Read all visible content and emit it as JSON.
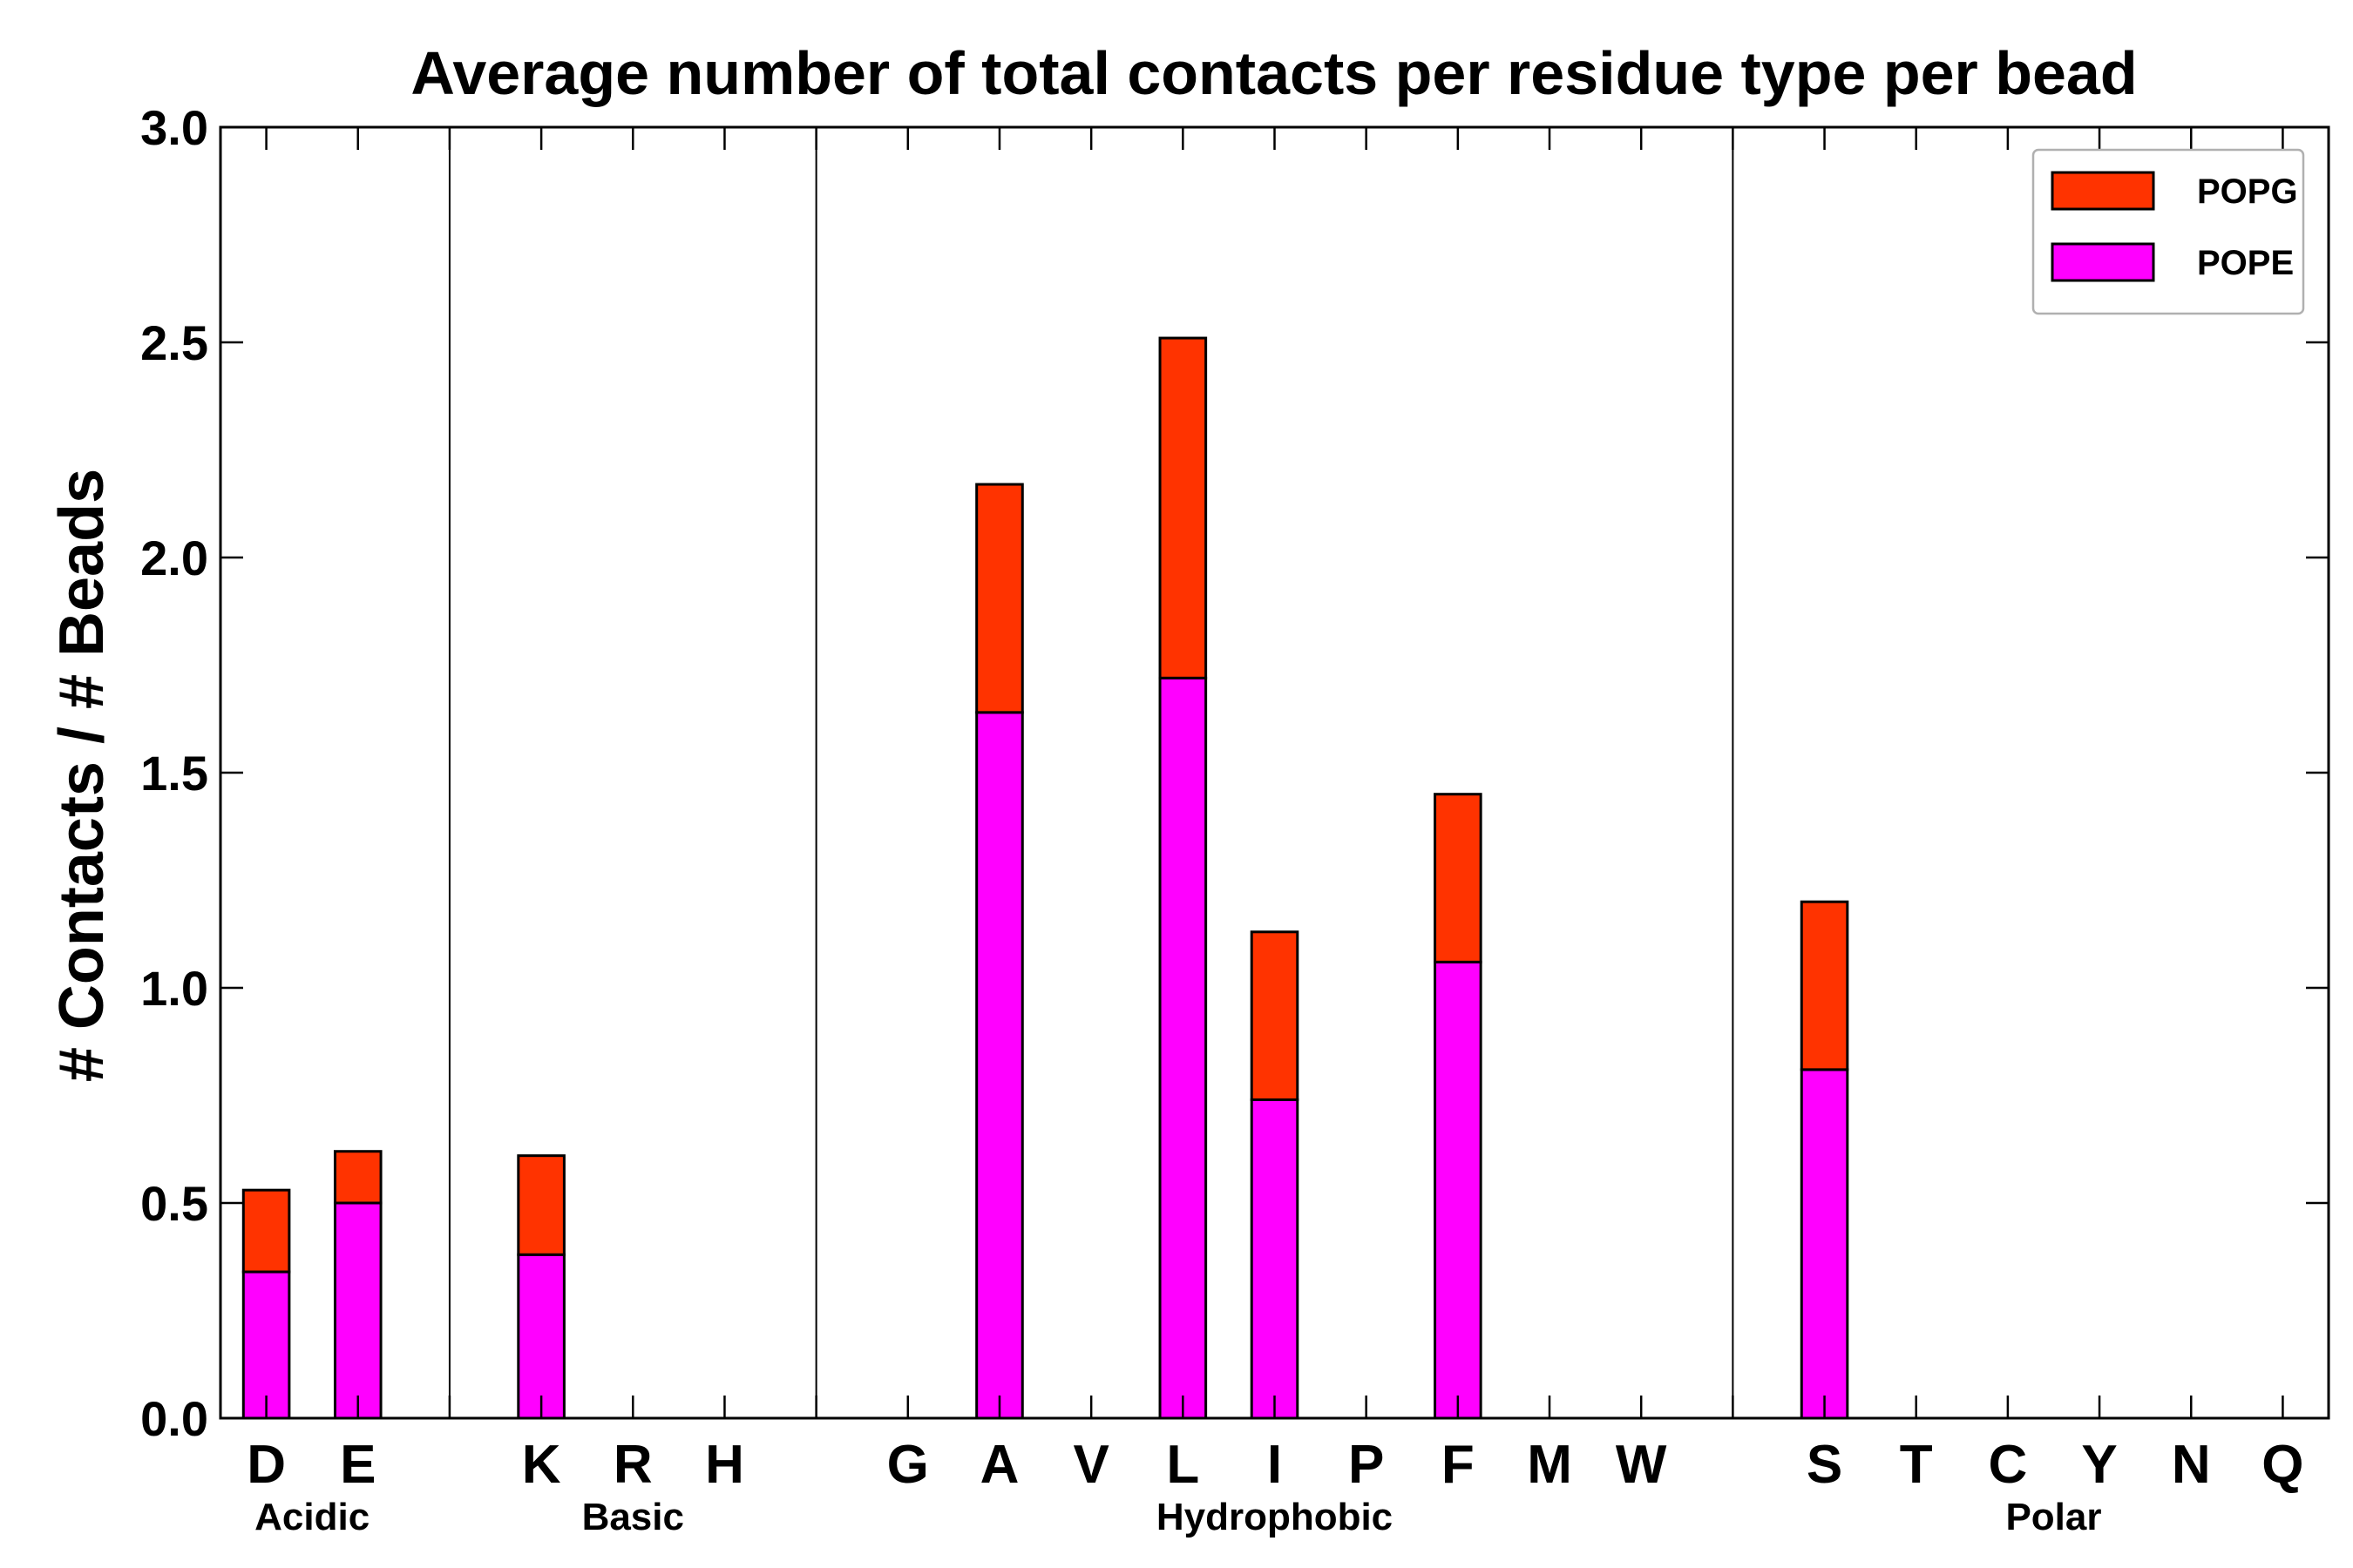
{
  "chart_data": {
    "type": "bar",
    "stacked": true,
    "title": "Average number of total contacts per residue type per bead",
    "xlabel": "",
    "ylabel": "# Contacts / # Beads",
    "ylim": [
      0,
      3.0
    ],
    "yticks": [
      "0.0",
      "0.5",
      "1.0",
      "1.5",
      "2.0",
      "2.5",
      "3.0"
    ],
    "categories": [
      "D",
      "E",
      "",
      "K",
      "R",
      "H",
      "",
      "G",
      "A",
      "V",
      "L",
      "I",
      "P",
      "F",
      "M",
      "W",
      "",
      "S",
      "T",
      "C",
      "Y",
      "N",
      "Q"
    ],
    "groups": [
      {
        "label": "Acidic",
        "members": [
          "D",
          "E"
        ]
      },
      {
        "label": "Basic",
        "members": [
          "K",
          "R",
          "H"
        ]
      },
      {
        "label": "Hydrophobic",
        "members": [
          "G",
          "A",
          "V",
          "L",
          "I",
          "P",
          "F",
          "M",
          "W"
        ]
      },
      {
        "label": "Polar",
        "members": [
          "S",
          "T",
          "C",
          "Y",
          "N",
          "Q"
        ]
      }
    ],
    "series": [
      {
        "name": "POPE",
        "color": "#ff00ff",
        "values": [
          0.34,
          0.5,
          0,
          0.38,
          0,
          0,
          0,
          0,
          1.64,
          0,
          1.72,
          0.74,
          0,
          1.06,
          0,
          0,
          0,
          0.81,
          0,
          0,
          0,
          0,
          0
        ]
      },
      {
        "name": "POPG",
        "color": "#ff3300",
        "values": [
          0.19,
          0.12,
          0,
          0.23,
          0,
          0,
          0,
          0,
          0.53,
          0,
          0.79,
          0.39,
          0,
          0.39,
          0,
          0,
          0,
          0.39,
          0,
          0,
          0,
          0,
          0
        ]
      }
    ],
    "legend": {
      "position": "top-right",
      "order": [
        "POPG",
        "POPE"
      ]
    }
  }
}
